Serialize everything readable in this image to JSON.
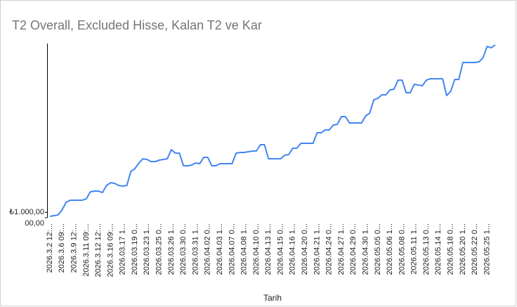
{
  "chart_data": {
    "type": "line",
    "title": "T2 Overall, Excluded Hisse, Kalan T2 ve Kar",
    "x_label": "Tarih",
    "categories": [
      "2026.3.2 12:...",
      null,
      null,
      "2026.3.6 09:...",
      null,
      null,
      "2026.3.9 12:...",
      null,
      null,
      "2026.3.11 09:...",
      null,
      null,
      "2026.3.12 12:...",
      null,
      null,
      "2026.3.16 09:...",
      null,
      null,
      "2026.03.17 1...",
      null,
      null,
      "2026.03.19 0...",
      null,
      null,
      "2026.03.23 1...",
      null,
      null,
      "2026.03.25 0...",
      null,
      null,
      "2026.03.26 1...",
      null,
      null,
      "2026.03.30 0...",
      null,
      null,
      "2026.03.31 1...",
      null,
      null,
      "2026.04.02 0...",
      null,
      null,
      "2026.04.03 1...",
      null,
      null,
      "2026.04.07 0...",
      null,
      null,
      "2026.04.08 1...",
      null,
      null,
      "2026.04.10 0...",
      null,
      null,
      "2026.04.13 1...",
      null,
      null,
      "2026.04.15 0...",
      null,
      null,
      "2026.04.16 1...",
      null,
      null,
      "2026.04.20 0...",
      null,
      null,
      "2026.04.21 1...",
      null,
      null,
      "2026.04.24 0...",
      null,
      null,
      "2026.04.27 1...",
      null,
      null,
      "2026.04.29 0...",
      null,
      null,
      "2026.04.30 1...",
      null,
      null,
      "2026.05.05 0...",
      null,
      null,
      "2026.05.06 1...",
      null,
      null,
      "2026.05.08 0...",
      null,
      null,
      "2026.05.11 1...",
      null,
      null,
      "2026.05.13 0...",
      null,
      null,
      "2026.05.14 1...",
      null,
      null,
      "2026.05.18 0...",
      null,
      null,
      "2026.05.20 1...",
      null,
      null,
      "2026.05.22 0...",
      null,
      null,
      "2026.05.25 1...",
      null,
      null
    ],
    "series": [
      {
        "name": "T2 Overall, Excluded Hisse, Kalan T2 ve Kar",
        "color": "#4285f4",
        "values": [
          260,
          390,
          520,
          1420,
          2840,
          3230,
          3230,
          3230,
          3230,
          3480,
          4770,
          4900,
          4900,
          4640,
          5930,
          6450,
          6320,
          5930,
          5810,
          5930,
          8510,
          9030,
          10060,
          10840,
          10710,
          10320,
          10320,
          10580,
          10710,
          10840,
          12510,
          11870,
          11870,
          9550,
          9550,
          9680,
          10060,
          9930,
          11090,
          11090,
          9550,
          9550,
          9930,
          9930,
          9930,
          9930,
          11870,
          12000,
          12000,
          12130,
          12260,
          12260,
          13420,
          13420,
          10840,
          10840,
          10840,
          10840,
          11480,
          11610,
          12770,
          12770,
          13670,
          13670,
          13670,
          13670,
          15610,
          15610,
          16130,
          16130,
          17030,
          17160,
          18580,
          18580,
          17420,
          17420,
          17420,
          17420,
          18710,
          19220,
          21670,
          21930,
          22580,
          22580,
          23480,
          23610,
          25280,
          25280,
          22960,
          22960,
          24510,
          24380,
          24250,
          25280,
          25540,
          25540,
          25540,
          25540,
          22450,
          23220,
          25410,
          25410,
          28510,
          28510,
          28510,
          28510,
          28640,
          29410,
          31480,
          31220,
          31730
        ]
      }
    ],
    "ylim": [
      0,
      32000
    ],
    "yticks": [
      {
        "value": 0,
        "label": "00,00"
      },
      {
        "value": 1000,
        "label": "₺1.000,00"
      }
    ],
    "grid": false
  }
}
